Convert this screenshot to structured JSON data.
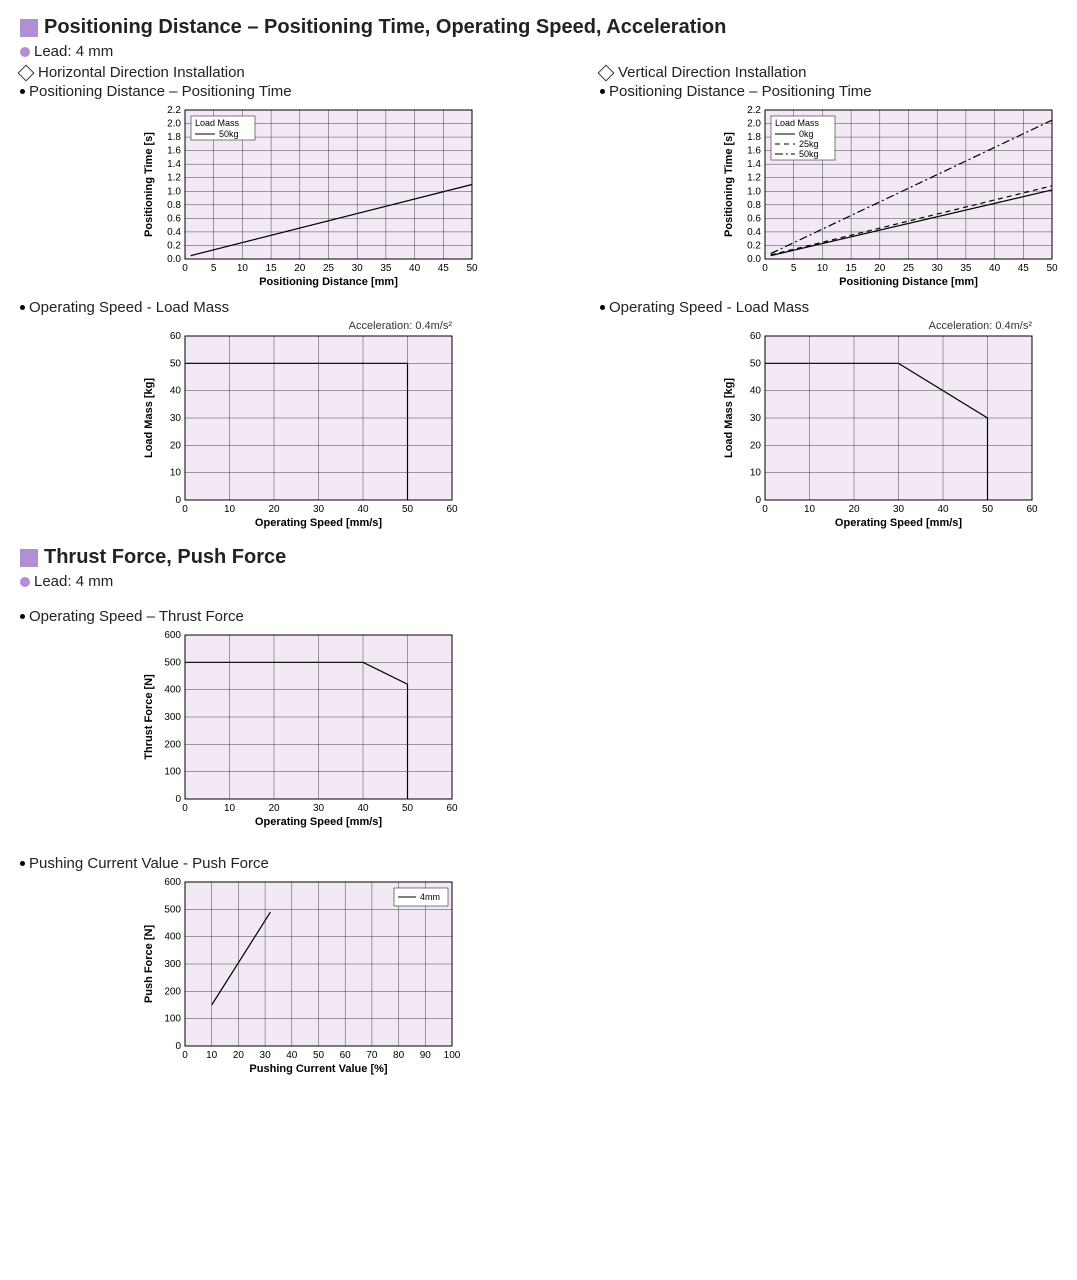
{
  "section1": {
    "title": "Positioning Distance – Positioning Time, Operating Speed, Acceleration",
    "lead": "Lead: 4 mm",
    "horizontal_label": "Horizontal Direction Installation",
    "vertical_label": "Vertical Direction Installation",
    "chart_pt_label": "Positioning Distance – Positioning Time",
    "chart_sl_label": "Operating Speed - Load Mass"
  },
  "section2": {
    "title": "Thrust Force, Push Force",
    "lead": "Lead: 4 mm",
    "chart_tf_label": "Operating Speed – Thrust Force",
    "chart_pf_label": "Pushing Current Value - Push Force"
  },
  "chartA": {
    "type": "line",
    "xlabel": "Positioning Distance [mm]",
    "ylabel": "Positioning Time [s]",
    "xlim": [
      0,
      50
    ],
    "xtick_step": 5,
    "ylim": [
      0,
      2.2
    ],
    "ytick_step": 0.2,
    "bg": "#f2e9f5",
    "grid_color": "#444444",
    "legend_title": "Load Mass",
    "series": [
      {
        "label": "50kg",
        "style": "solid",
        "points": [
          [
            1,
            0.05
          ],
          [
            50,
            1.1
          ]
        ]
      }
    ]
  },
  "chartB": {
    "type": "line",
    "xlabel": "Positioning Distance [mm]",
    "ylabel": "Positioning Time [s]",
    "xlim": [
      0,
      50
    ],
    "xtick_step": 5,
    "ylim": [
      0,
      2.2
    ],
    "ytick_step": 0.2,
    "bg": "#f2e9f5",
    "grid_color": "#444444",
    "legend_title": "Load Mass",
    "series": [
      {
        "label": "0kg",
        "style": "solid",
        "points": [
          [
            1,
            0.05
          ],
          [
            50,
            1.02
          ]
        ]
      },
      {
        "label": "25kg",
        "style": "dashed",
        "points": [
          [
            1,
            0.06
          ],
          [
            50,
            1.08
          ]
        ]
      },
      {
        "label": "50kg",
        "style": "dashdot",
        "points": [
          [
            1,
            0.08
          ],
          [
            50,
            2.05
          ]
        ]
      }
    ]
  },
  "chartC": {
    "type": "line",
    "note": "Acceleration: 0.4m/s²",
    "xlabel": "Operating Speed [mm/s]",
    "ylabel": "Load Mass [kg]",
    "xlim": [
      0,
      60
    ],
    "xtick_step": 10,
    "ylim": [
      0,
      60
    ],
    "ytick_step": 10,
    "bg": "#f2e9f5",
    "series": [
      {
        "style": "solid",
        "points": [
          [
            0,
            50
          ],
          [
            50,
            50
          ],
          [
            50,
            0
          ]
        ]
      }
    ]
  },
  "chartD": {
    "type": "line",
    "note": "Acceleration: 0.4m/s²",
    "xlabel": "Operating Speed [mm/s]",
    "ylabel": "Load Mass [kg]",
    "xlim": [
      0,
      60
    ],
    "xtick_step": 10,
    "ylim": [
      0,
      60
    ],
    "ytick_step": 10,
    "bg": "#f2e9f5",
    "series": [
      {
        "style": "solid",
        "points": [
          [
            0,
            50
          ],
          [
            30,
            50
          ],
          [
            50,
            30
          ],
          [
            50,
            0
          ]
        ]
      }
    ]
  },
  "chartE": {
    "type": "line",
    "xlabel": "Operating Speed [mm/s]",
    "ylabel": "Thrust Force [N]",
    "xlim": [
      0,
      60
    ],
    "xtick_step": 10,
    "ylim": [
      0,
      600
    ],
    "ytick_step": 100,
    "bg": "#f2e9f5",
    "series": [
      {
        "style": "solid",
        "points": [
          [
            0,
            500
          ],
          [
            40,
            500
          ],
          [
            50,
            420
          ],
          [
            50,
            0
          ]
        ]
      }
    ]
  },
  "chartF": {
    "type": "line",
    "xlabel": "Pushing Current Value [%]",
    "ylabel": "Push Force [N]",
    "xlim": [
      0,
      100
    ],
    "xtick_step": 10,
    "ylim": [
      0,
      600
    ],
    "ytick_step": 100,
    "bg": "#f2e9f5",
    "legend_items": [
      "4mm"
    ],
    "series": [
      {
        "label": "4mm",
        "style": "solid",
        "points": [
          [
            10,
            150
          ],
          [
            32,
            490
          ]
        ]
      }
    ]
  }
}
